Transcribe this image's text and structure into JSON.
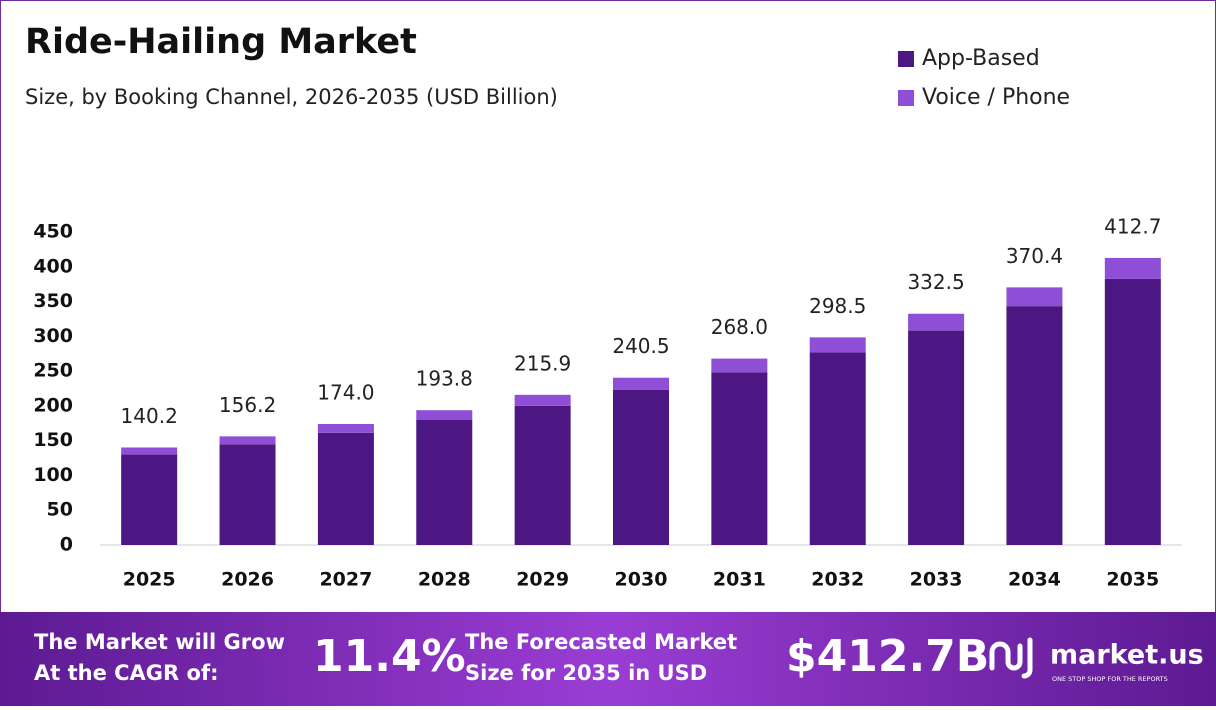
{
  "chart_data": {
    "type": "stacked_bar",
    "title": "Ride-Hailing Market",
    "subtitle": "Size, by Booking Channel, 2026-2035 (USD Billion)",
    "categories": [
      "2025",
      "2026",
      "2027",
      "2028",
      "2029",
      "2030",
      "2031",
      "2032",
      "2033",
      "2034",
      "2035"
    ],
    "series": [
      {
        "name": "App-Based",
        "color": "#4c1782",
        "values": [
          130.0,
          144.8,
          161.3,
          179.7,
          200.1,
          222.9,
          248.4,
          276.7,
          308.2,
          343.4,
          382.6
        ]
      },
      {
        "name": "Voice / Phone",
        "color": "#8e4fd6",
        "values": [
          10.2,
          11.4,
          12.7,
          14.1,
          15.8,
          17.6,
          19.6,
          21.8,
          24.3,
          27.0,
          30.1
        ]
      }
    ],
    "totals": [
      140.2,
      156.2,
      174.0,
      193.8,
      215.9,
      240.5,
      268.0,
      298.5,
      332.5,
      370.4,
      412.7
    ],
    "total_labels": [
      "140.2",
      "156.2",
      "174.0",
      "193.8",
      "215.9",
      "240.5",
      "268.0",
      "298.5",
      "332.5",
      "370.4",
      "412.7"
    ],
    "ylim": [
      0,
      450
    ],
    "yticks": [
      0,
      50,
      100,
      150,
      200,
      250,
      300,
      350,
      400,
      450
    ],
    "grid": false,
    "legend": "top-right"
  },
  "footer": {
    "cagr_text": [
      "The Market will Grow",
      "At the CAGR of:"
    ],
    "cagr_value": "11.4%",
    "forecast_text": [
      "The Forecasted Market",
      "Size for 2035 in USD"
    ],
    "forecast_value": "$412.7B",
    "brand": "market.us",
    "tagline": "ONE STOP SHOP FOR THE REPORTS"
  }
}
